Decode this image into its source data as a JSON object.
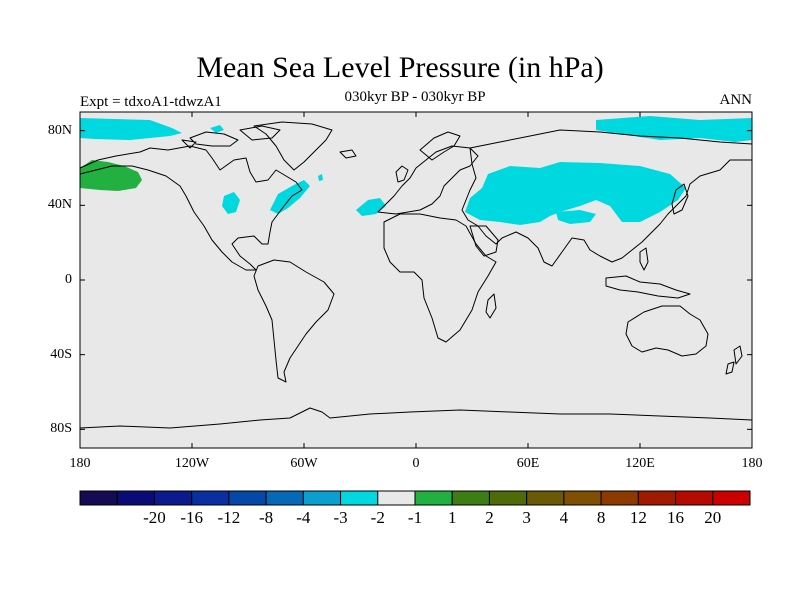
{
  "title": "Mean Sea Level Pressure (in hPa)",
  "subtitle": "030kyr BP - 030kyr BP",
  "experiment_label": "Expt = tdxoA1-tdwzA1",
  "season_label": "ANN",
  "colors": {
    "background": "#e8e8e8",
    "coast": "#000000",
    "cyan": "#00d8e0",
    "green": "#22b040"
  },
  "lat_ticks": [
    {
      "label": "80N",
      "lat": 80
    },
    {
      "label": "40N",
      "lat": 40
    },
    {
      "label": "0",
      "lat": 0
    },
    {
      "label": "40S",
      "lat": -40
    },
    {
      "label": "80S",
      "lat": -80
    }
  ],
  "lon_ticks": [
    {
      "label": "180",
      "lon": -180
    },
    {
      "label": "120W",
      "lon": -120
    },
    {
      "label": "60W",
      "lon": -60
    },
    {
      "label": "0",
      "lon": 0
    },
    {
      "label": "60E",
      "lon": 60
    },
    {
      "label": "120E",
      "lon": 120
    },
    {
      "label": "180",
      "lon": 180
    }
  ],
  "colorbar": {
    "colors": [
      "#150b55",
      "#0b0b78",
      "#0b1a8c",
      "#0a2fa0",
      "#0548a8",
      "#0569b8",
      "#0a9fd0",
      "#00d8e0",
      "#e8e8e8",
      "#22b040",
      "#3c7d14",
      "#4e6a0a",
      "#6a5a06",
      "#805002",
      "#8c3a00",
      "#a01a00",
      "#b40a00",
      "#cc0000"
    ],
    "labels": [
      "-20",
      "-16",
      "-12",
      "-8",
      "-4",
      "-3",
      "-2",
      "-1",
      "1",
      "2",
      "3",
      "4",
      "8",
      "12",
      "16",
      "20"
    ]
  }
}
